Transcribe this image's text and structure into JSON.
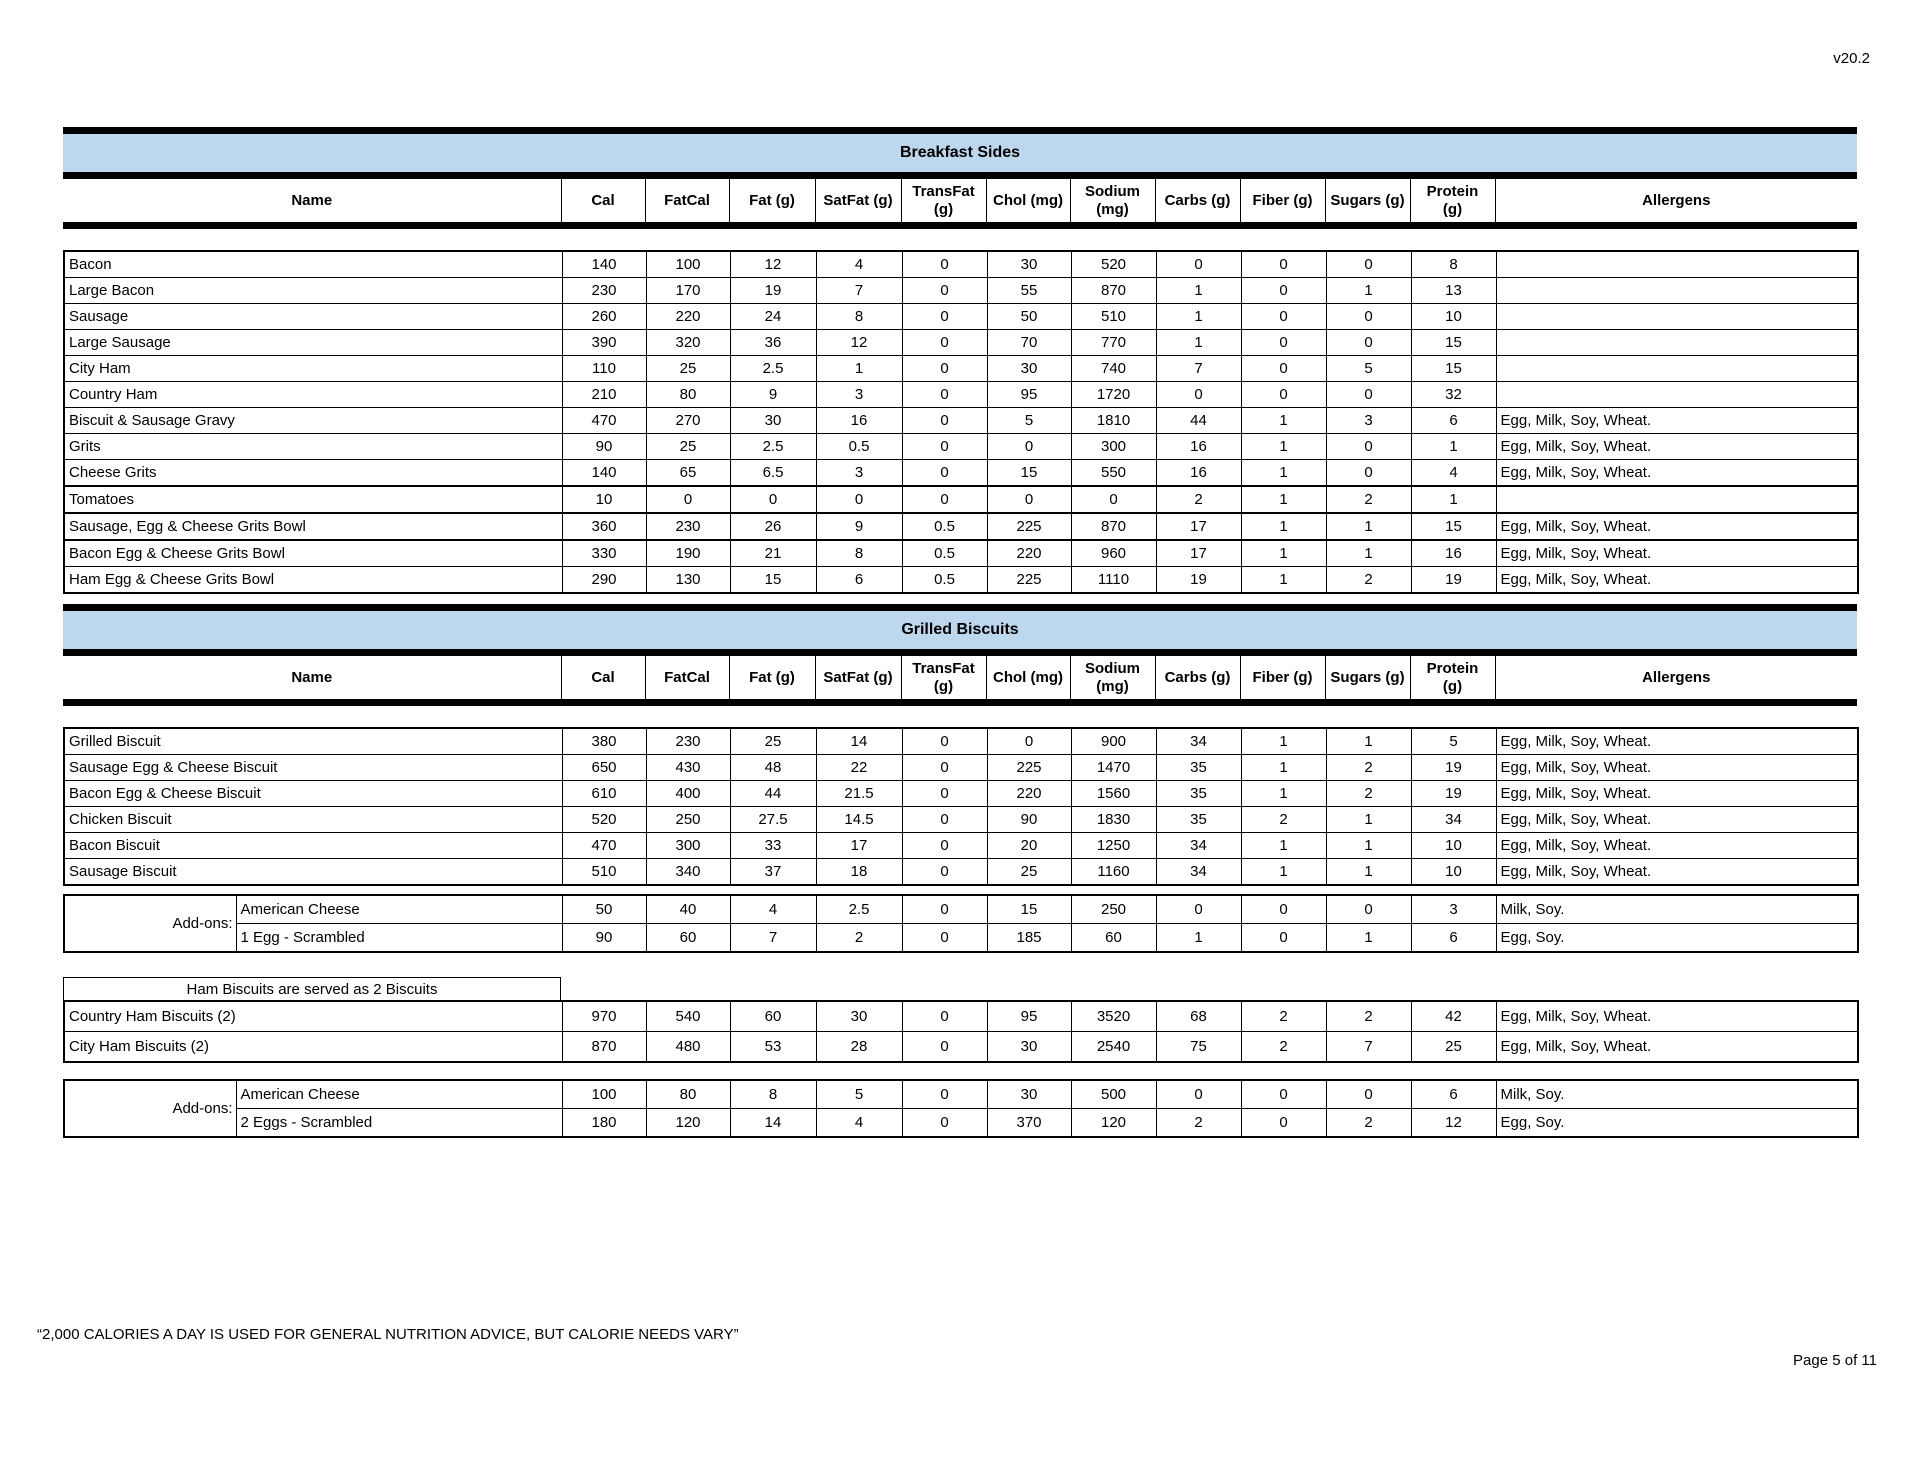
{
  "page": {
    "version": "v20.2",
    "footer_quote": "“2,000 CALORIES A DAY IS USED FOR GENERAL NUTRITION ADVICE, BUT CALORIE NEEDS VARY”",
    "page_number": "Page 5 of 11"
  },
  "columns": [
    "Name",
    "Cal",
    "FatCal",
    "Fat (g)",
    "SatFat (g)",
    "TransFat\n(g)",
    "Chol (mg)",
    "Sodium\n(mg)",
    "Carbs (g)",
    "Fiber (g)",
    "Sugars (g)",
    "Protein\n(g)",
    "Allergens"
  ],
  "column_keys": [
    "name",
    "cal",
    "fatcal",
    "fat",
    "satfat",
    "transfat",
    "chol",
    "sodium",
    "carbs",
    "fiber",
    "sugars",
    "protein",
    "allergens"
  ],
  "sections": [
    {
      "type": "table",
      "title": "Breakfast Sides",
      "rows": [
        {
          "name": "Bacon",
          "cells": [
            "140",
            "100",
            "12",
            "4",
            "0",
            "30",
            "520",
            "0",
            "0",
            "0",
            "8"
          ],
          "allergens": ""
        },
        {
          "name": "Large Bacon",
          "cells": [
            "230",
            "170",
            "19",
            "7",
            "0",
            "55",
            "870",
            "1",
            "0",
            "1",
            "13"
          ],
          "allergens": ""
        },
        {
          "name": "Sausage",
          "cells": [
            "260",
            "220",
            "24",
            "8",
            "0",
            "50",
            "510",
            "1",
            "0",
            "0",
            "10"
          ],
          "allergens": ""
        },
        {
          "name": "Large Sausage",
          "cells": [
            "390",
            "320",
            "36",
            "12",
            "0",
            "70",
            "770",
            "1",
            "0",
            "0",
            "15"
          ],
          "allergens": ""
        },
        {
          "name": "City Ham",
          "cells": [
            "110",
            "25",
            "2.5",
            "1",
            "0",
            "30",
            "740",
            "7",
            "0",
            "5",
            "15"
          ],
          "allergens": ""
        },
        {
          "name": "Country Ham",
          "cells": [
            "210",
            "80",
            "9",
            "3",
            "0",
            "95",
            "1720",
            "0",
            "0",
            "0",
            "32"
          ],
          "allergens": ""
        },
        {
          "name": "Biscuit & Sausage Gravy",
          "cells": [
            "470",
            "270",
            "30",
            "16",
            "0",
            "5",
            "1810",
            "44",
            "1",
            "3",
            "6"
          ],
          "allergens": "Egg, Milk, Soy, Wheat."
        },
        {
          "name": "Grits",
          "cells": [
            "90",
            "25",
            "2.5",
            "0.5",
            "0",
            "0",
            "300",
            "16",
            "1",
            "0",
            "1"
          ],
          "allergens": "Egg, Milk, Soy, Wheat."
        },
        {
          "name": "Cheese Grits",
          "cells": [
            "140",
            "65",
            "6.5",
            "3",
            "0",
            "15",
            "550",
            "16",
            "1",
            "0",
            "4"
          ],
          "allergens": "Egg, Milk, Soy, Wheat."
        },
        {
          "name": "Tomatoes",
          "cells": [
            "10",
            "0",
            "0",
            "0",
            "0",
            "0",
            "0",
            "2",
            "1",
            "2",
            "1"
          ],
          "allergens": "",
          "group_start": true
        },
        {
          "name": "Sausage, Egg & Cheese Grits Bowl",
          "cells": [
            "360",
            "230",
            "26",
            "9",
            "0.5",
            "225",
            "870",
            "17",
            "1",
            "1",
            "15"
          ],
          "allergens": "Egg, Milk, Soy, Wheat.",
          "group_start": true
        },
        {
          "name": "Bacon Egg & Cheese Grits Bowl",
          "cells": [
            "330",
            "190",
            "21",
            "8",
            "0.5",
            "220",
            "960",
            "17",
            "1",
            "1",
            "16"
          ],
          "allergens": "Egg, Milk, Soy, Wheat.",
          "group_start": true
        },
        {
          "name": "Ham Egg & Cheese Grits Bowl",
          "cells": [
            "290",
            "130",
            "15",
            "6",
            "0.5",
            "225",
            "1110",
            "19",
            "1",
            "2",
            "19"
          ],
          "allergens": "Egg, Milk, Soy, Wheat."
        }
      ]
    },
    {
      "type": "table",
      "title": "Grilled Biscuits",
      "rows": [
        {
          "name": "Grilled Biscuit",
          "cells": [
            "380",
            "230",
            "25",
            "14",
            "0",
            "0",
            "900",
            "34",
            "1",
            "1",
            "5"
          ],
          "allergens": "Egg, Milk, Soy, Wheat."
        },
        {
          "name": "Sausage Egg & Cheese Biscuit",
          "cells": [
            "650",
            "430",
            "48",
            "22",
            "0",
            "225",
            "1470",
            "35",
            "1",
            "2",
            "19"
          ],
          "allergens": "Egg, Milk, Soy, Wheat."
        },
        {
          "name": "Bacon Egg & Cheese Biscuit",
          "cells": [
            "610",
            "400",
            "44",
            "21.5",
            "0",
            "220",
            "1560",
            "35",
            "1",
            "2",
            "19"
          ],
          "allergens": "Egg, Milk, Soy, Wheat."
        },
        {
          "name": "Chicken Biscuit",
          "cells": [
            "520",
            "250",
            "27.5",
            "14.5",
            "0",
            "90",
            "1830",
            "35",
            "2",
            "1",
            "34"
          ],
          "allergens": "Egg, Milk, Soy, Wheat."
        },
        {
          "name": "Bacon Biscuit",
          "cells": [
            "470",
            "300",
            "33",
            "17",
            "0",
            "20",
            "1250",
            "34",
            "1",
            "1",
            "10"
          ],
          "allergens": "Egg, Milk, Soy, Wheat."
        },
        {
          "name": "Sausage Biscuit",
          "cells": [
            "510",
            "340",
            "37",
            "18",
            "0",
            "25",
            "1160",
            "34",
            "1",
            "1",
            "10"
          ],
          "allergens": "Egg, Milk, Soy, Wheat."
        }
      ]
    },
    {
      "type": "addons",
      "label": "Add-ons:",
      "rows": [
        {
          "name": "American Cheese",
          "cells": [
            "50",
            "40",
            "4",
            "2.5",
            "0",
            "15",
            "250",
            "0",
            "0",
            "0",
            "3"
          ],
          "allergens": "Milk, Soy."
        },
        {
          "name": "1 Egg - Scrambled",
          "cells": [
            "90",
            "60",
            "7",
            "2",
            "0",
            "185",
            "60",
            "1",
            "0",
            "1",
            "6"
          ],
          "allergens": "Egg, Soy."
        }
      ]
    },
    {
      "type": "ham",
      "note": "Ham Biscuits are served as 2 Biscuits",
      "rows": [
        {
          "name": "Country Ham Biscuits (2)",
          "cells": [
            "970",
            "540",
            "60",
            "30",
            "0",
            "95",
            "3520",
            "68",
            "2",
            "2",
            "42"
          ],
          "allergens": "Egg, Milk, Soy, Wheat."
        },
        {
          "name": "City Ham Biscuits (2)",
          "cells": [
            "870",
            "480",
            "53",
            "28",
            "0",
            "30",
            "2540",
            "75",
            "2",
            "7",
            "25"
          ],
          "allergens": "Egg, Milk, Soy, Wheat."
        }
      ]
    },
    {
      "type": "addons",
      "label": "Add-ons:",
      "rows": [
        {
          "name": "American Cheese",
          "cells": [
            "100",
            "80",
            "8",
            "5",
            "0",
            "30",
            "500",
            "0",
            "0",
            "0",
            "6"
          ],
          "allergens": "Milk, Soy."
        },
        {
          "name": "2 Eggs - Scrambled",
          "cells": [
            "180",
            "120",
            "14",
            "4",
            "0",
            "370",
            "120",
            "2",
            "0",
            "2",
            "12"
          ],
          "allergens": "Egg, Soy."
        }
      ]
    }
  ],
  "layout_widths": {
    "cols": [
      498,
      84,
      84,
      86,
      86,
      85,
      84,
      85,
      85,
      85,
      85,
      85,
      362
    ],
    "addon_label": 172,
    "addon_name": 326
  }
}
